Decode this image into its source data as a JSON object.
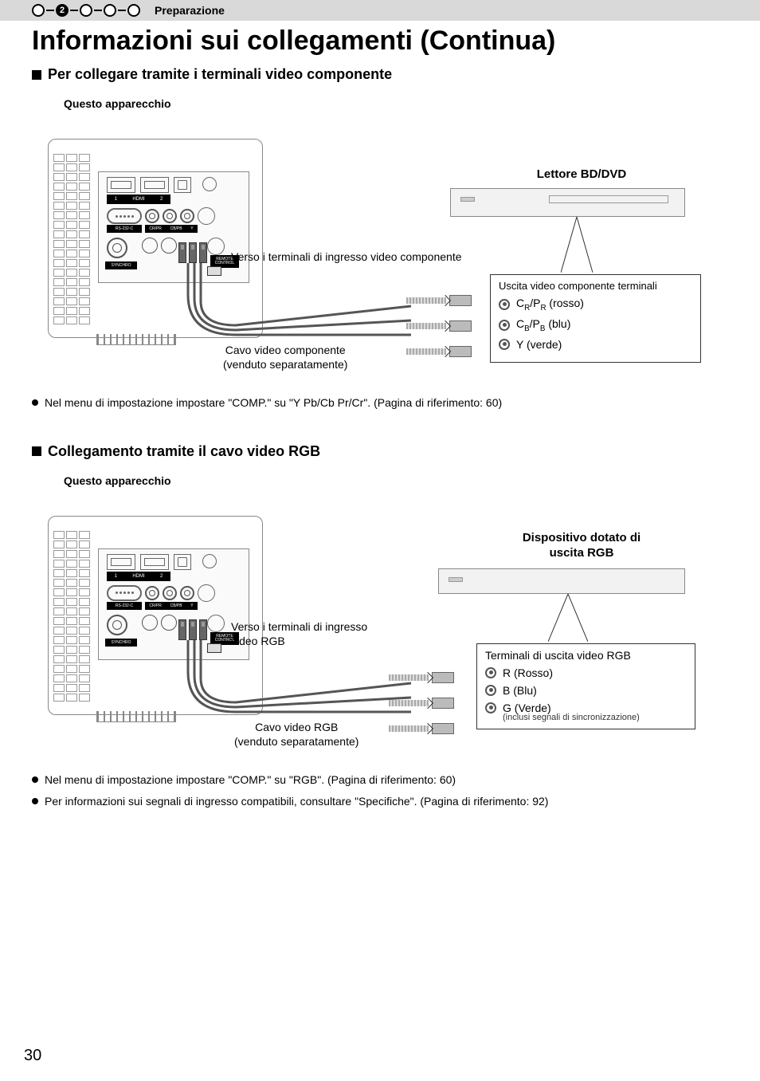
{
  "stepbar": {
    "active_step": "2",
    "label": "Preparazione"
  },
  "page_title": "Informazioni sui collegamenti (Continua)",
  "section1": {
    "heading": "Per collegare tramite i terminali video componente",
    "sub_label": "Questo apparecchio",
    "player_label": "Lettore BD/DVD",
    "input_label": "Verso i terminali di ingresso video componente",
    "cable_caption_l1": "Cavo video componente",
    "cable_caption_l2": "(venduto separatamente)",
    "terminal_title": "Uscita video componente terminali",
    "row1_html": "C<sub>R</sub>/P<sub>R</sub> (rosso)",
    "row2_html": "C<sub>B</sub>/P<sub>B</sub> (blu)",
    "row3": "Y (verde)",
    "bullets": [
      "Nel menu di impostazione impostare \"COMP.\" su \"Y Pb/Cb Pr/Cr\". (Pagina di riferimento: 60)"
    ]
  },
  "section2": {
    "heading": "Collegamento tramite il cavo video RGB",
    "sub_label": "Questo apparecchio",
    "player_label_l1": "Dispositivo dotato di",
    "player_label_l2": "uscita RGB",
    "input_label_l1": "Verso i terminali di ingresso",
    "input_label_l2": "video RGB",
    "cable_caption_l1": "Cavo video RGB",
    "cable_caption_l2": "(venduto separatamente)",
    "terminal_title": "Terminali di uscita video RGB",
    "row1": "R (Rosso)",
    "row2": "B (Blu)",
    "row3": "G (Verde)",
    "row3_note": "(inclusi segnali di sincronizzazione)",
    "bullets": [
      "Nel menu di impostazione impostare \"COMP.\" su \"RGB\". (Pagina di riferimento: 60)",
      "Per informazioni sui segnali di ingresso compatibili, consultare \"Specifiche\". (Pagina di riferimento: 92)"
    ]
  },
  "panel_labels": {
    "hdmi1": "1",
    "hdmi_text": "HDMI",
    "hdmi2": "2",
    "rs232": "RS-232-C",
    "rca1": "CR/PR",
    "rca2": "CB/PB",
    "rca3": "Y",
    "sync": "SYNCHRO",
    "remote": "REMOTE CONTROL"
  },
  "page_number": "30",
  "colors": {
    "bar_bg": "#d9d9d9",
    "text": "#000000",
    "border": "#888888",
    "panel_bg": "#fafafa",
    "black_label": "#000000"
  }
}
